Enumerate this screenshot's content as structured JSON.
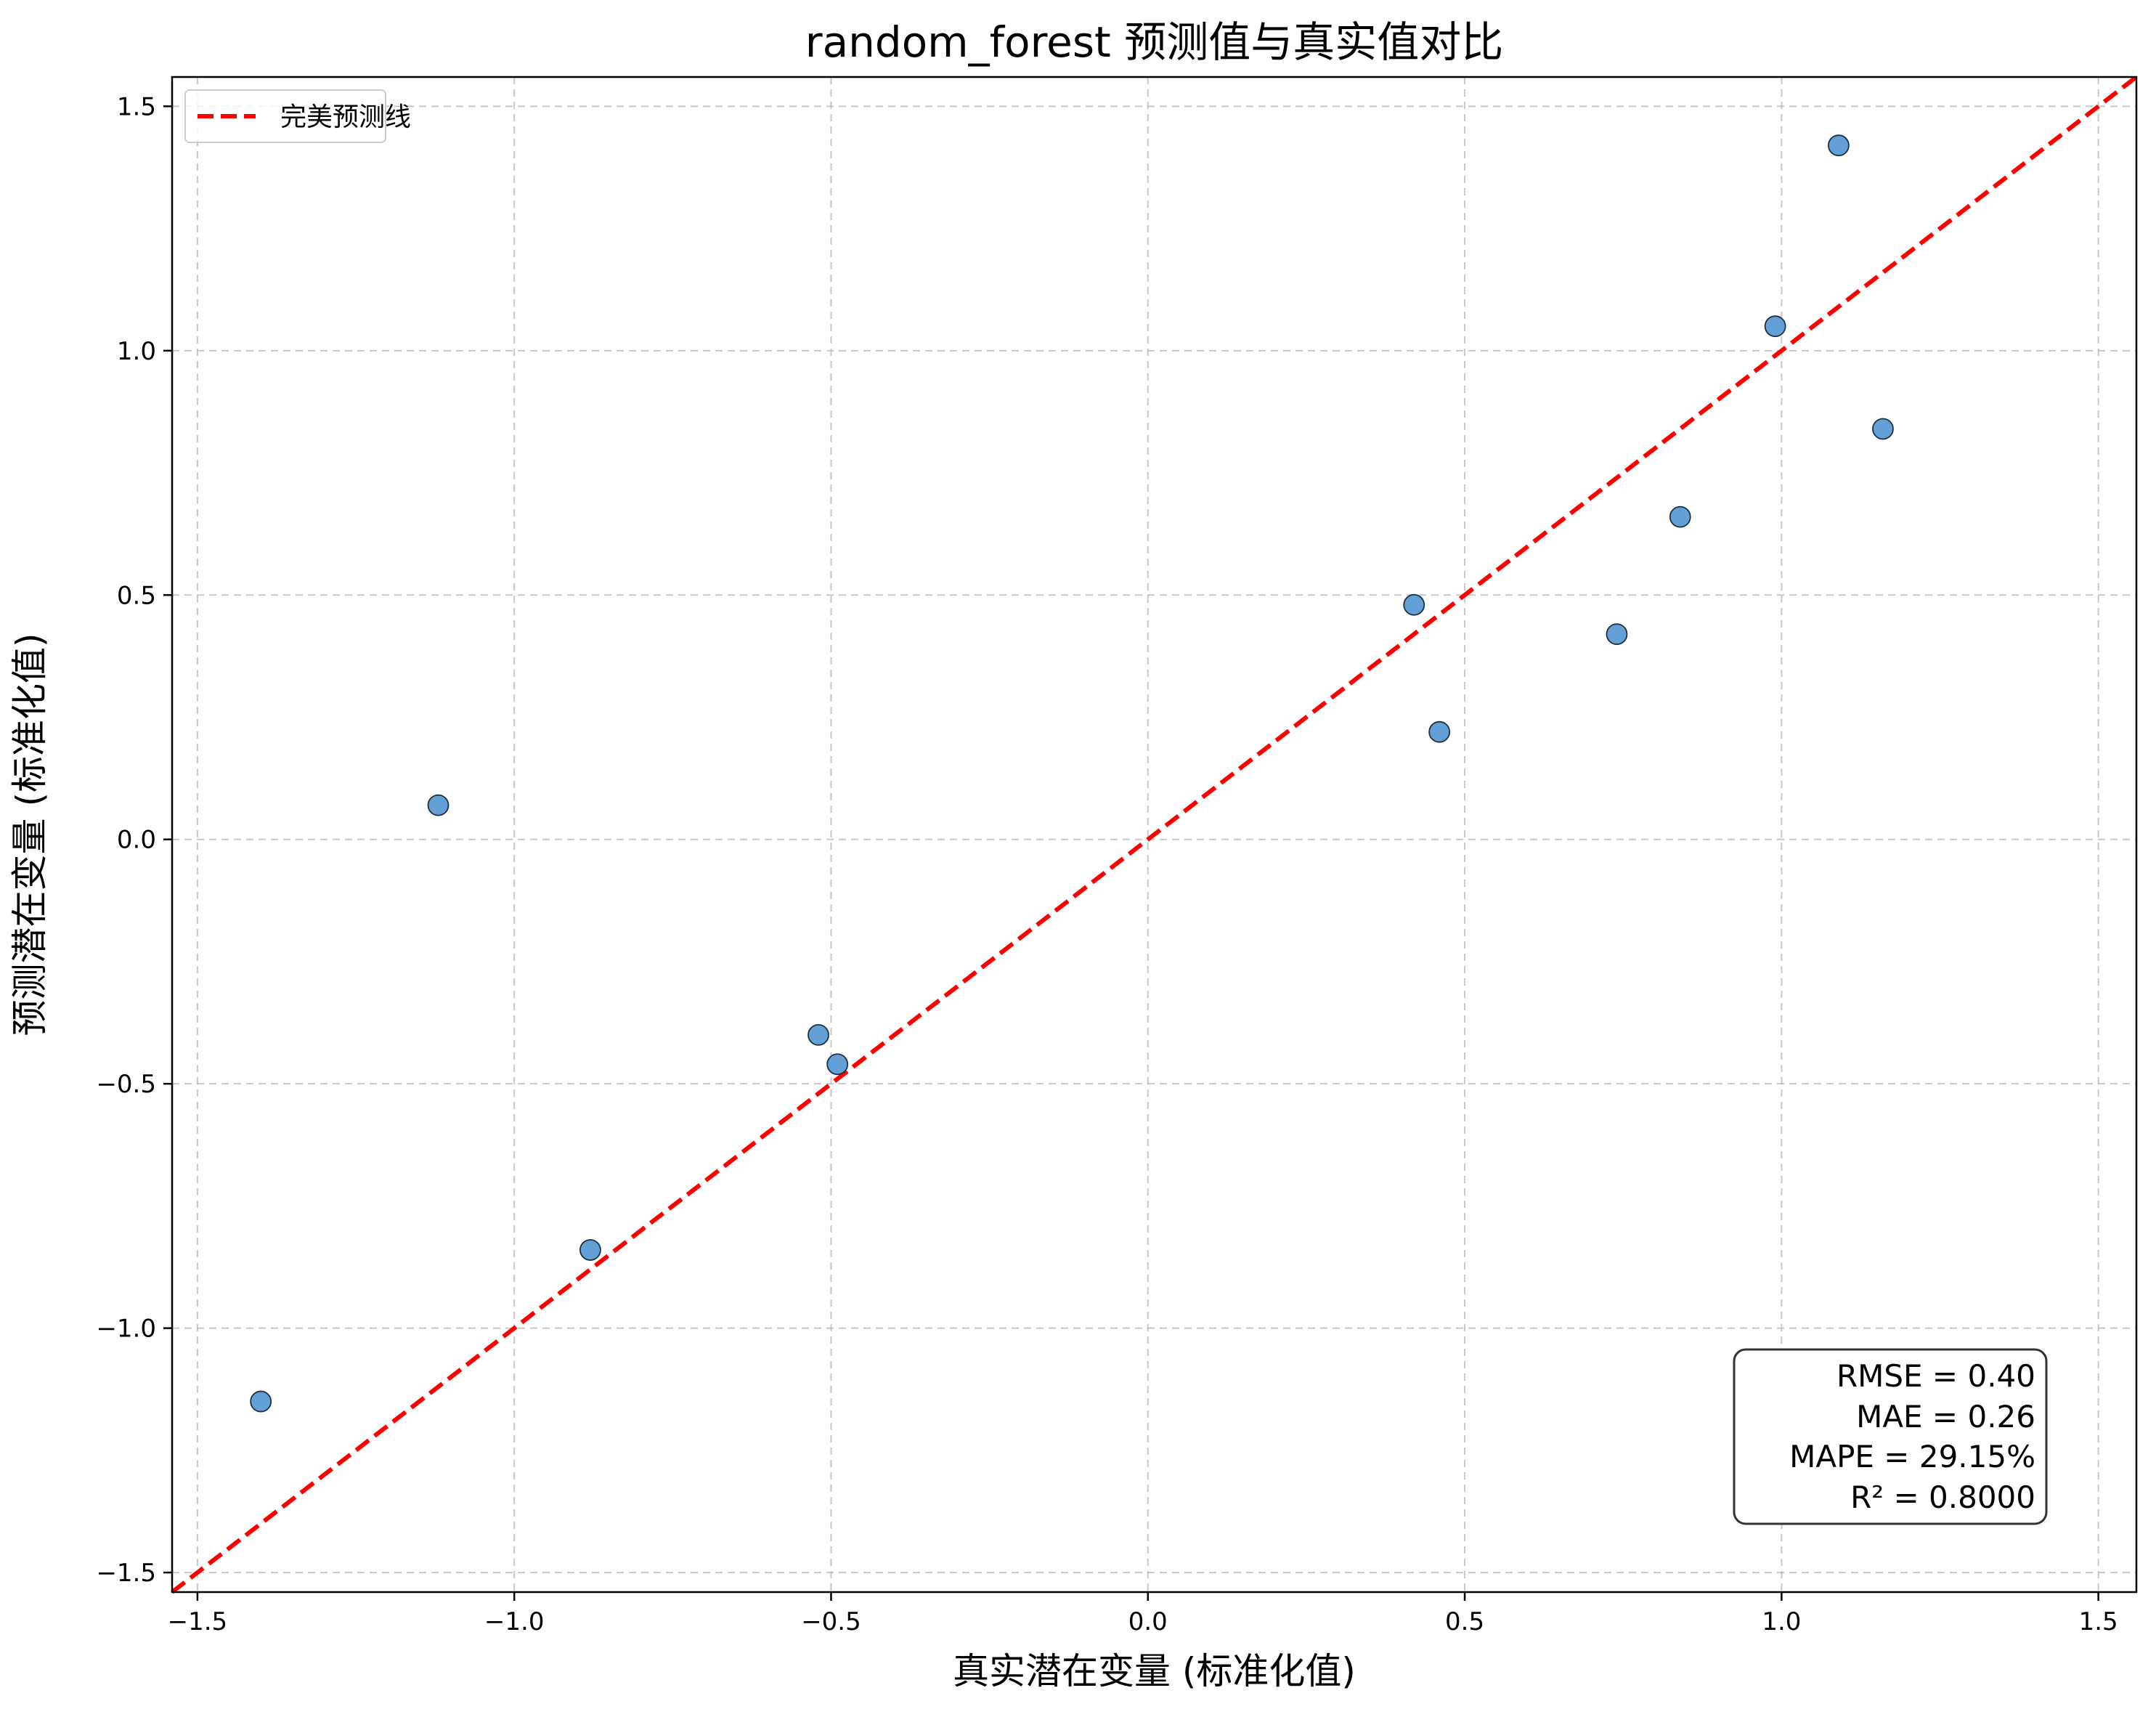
{
  "chart_data": {
    "type": "scatter",
    "title": "random_forest 预测值与真实值对比",
    "xlabel": "真实潜在变量 (标准化值)",
    "ylabel": "预测潜在变量 (标准化值)",
    "xlim": [
      -1.54,
      1.56
    ],
    "ylim": [
      -1.54,
      1.56
    ],
    "xticks": [
      -1.5,
      -1.0,
      -0.5,
      0.0,
      0.5,
      1.0,
      1.5
    ],
    "yticks": [
      -1.5,
      -1.0,
      -0.5,
      0.0,
      0.5,
      1.0,
      1.5
    ],
    "xtick_labels": [
      "−1.5",
      "−1.0",
      "−0.5",
      "0.0",
      "0.5",
      "1.0",
      "1.5"
    ],
    "ytick_labels": [
      "−1.5",
      "−1.0",
      "−0.5",
      "0.0",
      "0.5",
      "1.0",
      "1.5"
    ],
    "grid": true,
    "legend": {
      "position": "top-left",
      "entries": [
        {
          "label": "完美预测线",
          "style": "dashed",
          "color": "#ff0000"
        }
      ]
    },
    "reference_line": {
      "label": "完美预测线",
      "x": [
        -1.54,
        1.56
      ],
      "y": [
        -1.54,
        1.56
      ],
      "color": "#ff0000"
    },
    "series": [
      {
        "color": "#5b9bd5",
        "points": [
          {
            "x": -1.4,
            "y": -1.15
          },
          {
            "x": -1.12,
            "y": 0.07
          },
          {
            "x": -0.88,
            "y": -0.84
          },
          {
            "x": -0.52,
            "y": -0.4
          },
          {
            "x": -0.49,
            "y": -0.46
          },
          {
            "x": 0.42,
            "y": 0.48
          },
          {
            "x": 0.46,
            "y": 0.22
          },
          {
            "x": 0.74,
            "y": 0.42
          },
          {
            "x": 0.84,
            "y": 0.66
          },
          {
            "x": 0.99,
            "y": 1.05
          },
          {
            "x": 1.09,
            "y": 1.42
          },
          {
            "x": 1.16,
            "y": 0.84
          }
        ]
      }
    ],
    "annotation": {
      "position": "bottom-right",
      "lines": [
        "RMSE = 0.40",
        "MAE = 0.26",
        "MAPE = 29.15%",
        "R² = 0.8000"
      ]
    }
  }
}
